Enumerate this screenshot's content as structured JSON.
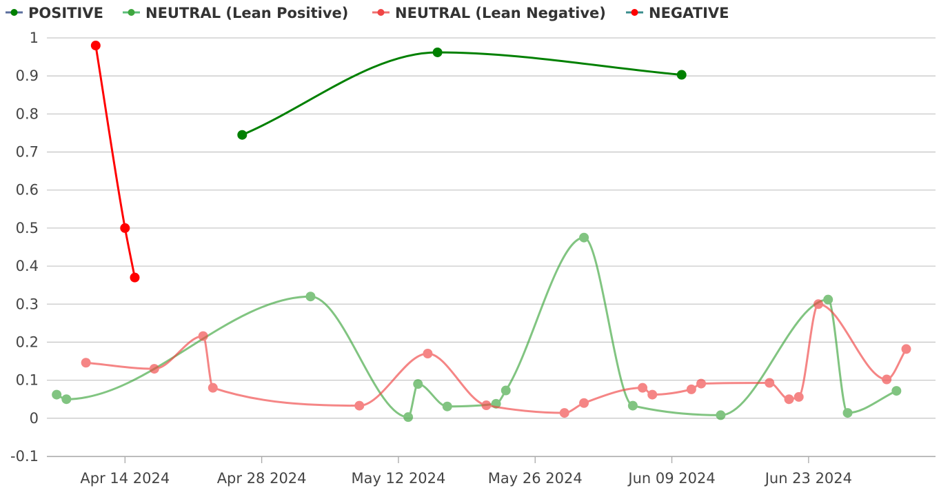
{
  "chart_data": {
    "type": "line",
    "x_axis": {
      "type": "date",
      "range": [
        "2024-04-06",
        "2024-07-06"
      ],
      "ticks": [
        "2024-04-14",
        "2024-04-28",
        "2024-05-12",
        "2024-05-26",
        "2024-06-09",
        "2024-06-23"
      ],
      "tick_labels": [
        "Apr 14 2024",
        "Apr 28 2024",
        "May 12 2024",
        "May 26 2024",
        "Jun 09 2024",
        "Jun 23 2024"
      ]
    },
    "y_axis": {
      "range": [
        -0.1,
        1
      ],
      "ticks": [
        -0.1,
        0,
        0.1,
        0.2,
        0.3,
        0.4,
        0.5,
        0.6,
        0.7,
        0.8,
        0.9,
        1
      ],
      "tick_labels": [
        "-0.1",
        "0",
        "0.1",
        "0.2",
        "0.3",
        "0.4",
        "0.5",
        "0.6",
        "0.7",
        "0.8",
        "0.9",
        "1"
      ]
    },
    "grid": true,
    "legend_position": "top-left",
    "series": [
      {
        "name": "POSITIVE",
        "color": "#008000",
        "legend_line_color": "#5a6e9c",
        "opacity": 1,
        "points": [
          {
            "x": "2024-04-26",
            "y": 0.745
          },
          {
            "x": "2024-05-16",
            "y": 0.962
          },
          {
            "x": "2024-06-10",
            "y": 0.903
          }
        ]
      },
      {
        "name": "NEUTRAL (Lean Positive)",
        "color": "#3ea63e",
        "legend_line_color": "#5cbf7a",
        "opacity": 0.65,
        "points": [
          {
            "x": "2024-04-07",
            "y": 0.062
          },
          {
            "x": "2024-04-08",
            "y": 0.05
          },
          {
            "x": "2024-05-03",
            "y": 0.32
          },
          {
            "x": "2024-05-13",
            "y": 0.003
          },
          {
            "x": "2024-05-14",
            "y": 0.09
          },
          {
            "x": "2024-05-17",
            "y": 0.031
          },
          {
            "x": "2024-05-22",
            "y": 0.038
          },
          {
            "x": "2024-05-23",
            "y": 0.073
          },
          {
            "x": "2024-05-31",
            "y": 0.475
          },
          {
            "x": "2024-06-05",
            "y": 0.033
          },
          {
            "x": "2024-06-14",
            "y": 0.008
          },
          {
            "x": "2024-06-25",
            "y": 0.312
          },
          {
            "x": "2024-06-27",
            "y": 0.014
          },
          {
            "x": "2024-07-02",
            "y": 0.072
          }
        ]
      },
      {
        "name": "NEUTRAL (Lean Negative)",
        "color": "#f04545",
        "legend_line_color": "#f07070",
        "opacity": 0.65,
        "points": [
          {
            "x": "2024-04-10",
            "y": 0.146
          },
          {
            "x": "2024-04-17",
            "y": 0.13
          },
          {
            "x": "2024-04-22",
            "y": 0.216
          },
          {
            "x": "2024-04-23",
            "y": 0.08
          },
          {
            "x": "2024-05-08",
            "y": 0.033
          },
          {
            "x": "2024-05-15",
            "y": 0.17
          },
          {
            "x": "2024-05-21",
            "y": 0.034
          },
          {
            "x": "2024-05-29",
            "y": 0.014
          },
          {
            "x": "2024-05-31",
            "y": 0.04
          },
          {
            "x": "2024-06-06",
            "y": 0.08
          },
          {
            "x": "2024-06-07",
            "y": 0.062
          },
          {
            "x": "2024-06-11",
            "y": 0.076
          },
          {
            "x": "2024-06-12",
            "y": 0.091
          },
          {
            "x": "2024-06-19",
            "y": 0.093
          },
          {
            "x": "2024-06-21",
            "y": 0.05
          },
          {
            "x": "2024-06-22",
            "y": 0.056
          },
          {
            "x": "2024-06-24",
            "y": 0.3
          },
          {
            "x": "2024-07-01",
            "y": 0.102
          },
          {
            "x": "2024-07-03",
            "y": 0.182
          }
        ]
      },
      {
        "name": "NEGATIVE",
        "color": "#ff0000",
        "legend_line_color": "#3a8c8c",
        "opacity": 1,
        "points": [
          {
            "x": "2024-04-11",
            "y": 0.98
          },
          {
            "x": "2024-04-14",
            "y": 0.5
          },
          {
            "x": "2024-04-15",
            "y": 0.37
          }
        ]
      }
    ]
  }
}
